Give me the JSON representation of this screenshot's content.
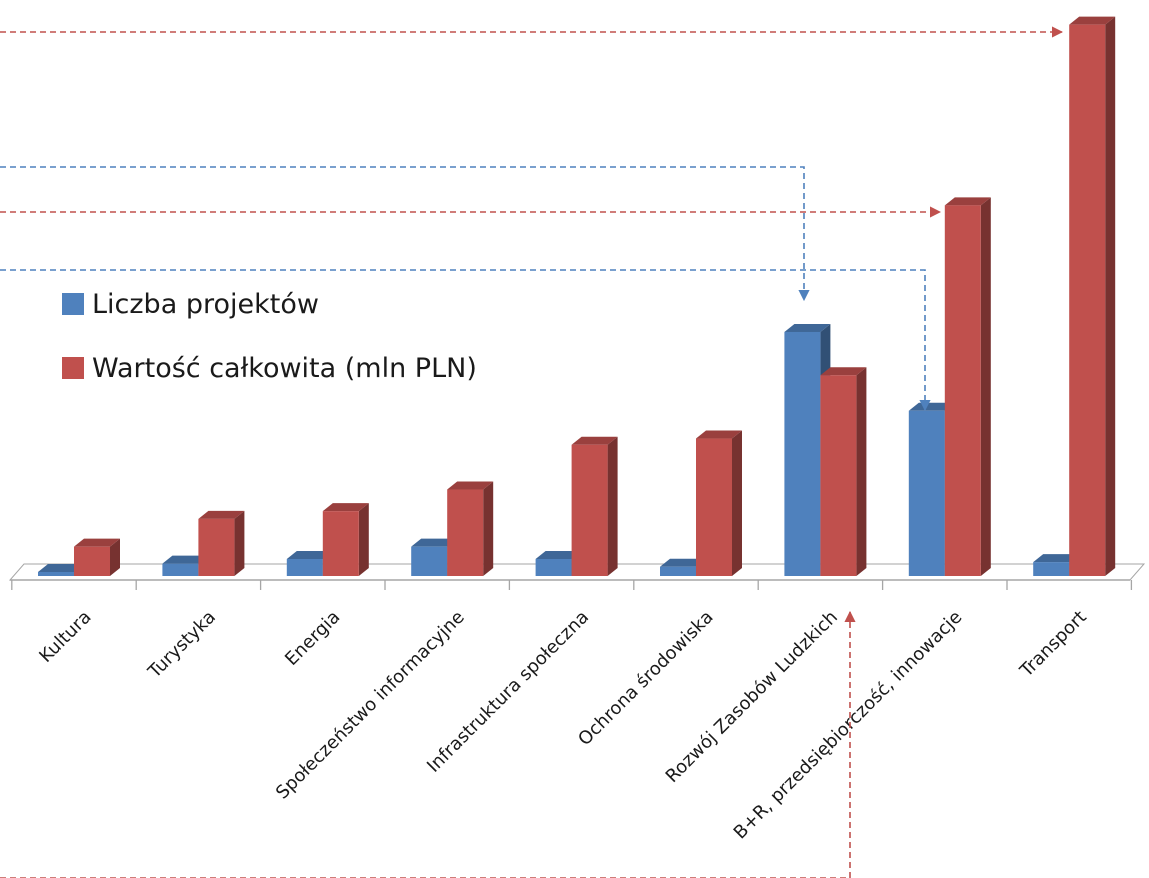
{
  "chart_data": {
    "type": "bar",
    "title": "",
    "xlabel": "",
    "ylabel": "",
    "categories": [
      "Kultura",
      "Turystyka",
      "Energia",
      "Społeczeństwo informacyjne",
      "Infrastruktura społeczna",
      "Ochrona środowiska",
      "Rozwój Zasobów Ludzkich",
      "B+R, przedsiębiorczość, innowacje",
      "Transport"
    ],
    "series": [
      {
        "name": "Liczba projektów",
        "color": "#4f81bd",
        "values": [
          2.5,
          8,
          11,
          19,
          11,
          6,
          158,
          107,
          9
        ]
      },
      {
        "name": "Wartość  całkowita (mln PLN)",
        "color": "#c0504d",
        "values": [
          19,
          37,
          42,
          56,
          85,
          89,
          130,
          240,
          357
        ]
      }
    ],
    "ylim": [
      0,
      360
    ],
    "grid": false,
    "axes_visible": false,
    "legend_position": "left-middle"
  }
}
